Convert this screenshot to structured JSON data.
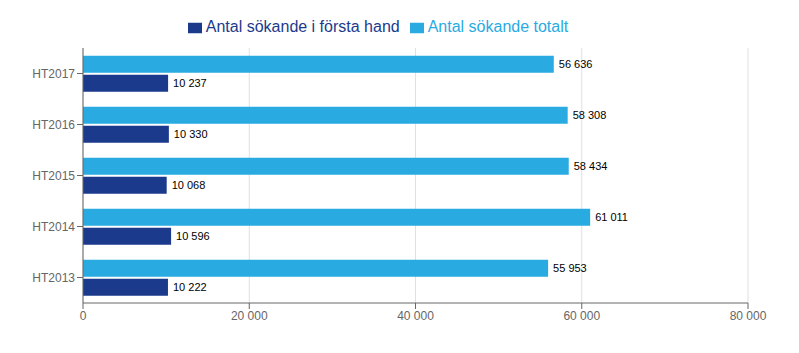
{
  "chart_data": {
    "type": "bar",
    "orientation": "horizontal",
    "categories": [
      "HT2017",
      "HT2016",
      "HT2015",
      "HT2014",
      "HT2013"
    ],
    "series": [
      {
        "name": "Antal sökande totalt",
        "color": "#29ABE2",
        "values": [
          56636,
          58308,
          58434,
          61011,
          55953
        ],
        "value_labels": [
          "56 636",
          "58 308",
          "58 434",
          "61 011",
          "55 953"
        ]
      },
      {
        "name": "Antal sökande i första hand",
        "color": "#1B3A8C",
        "values": [
          10237,
          10330,
          10068,
          10596,
          10222
        ],
        "value_labels": [
          "10 237",
          "10 330",
          "10 068",
          "10 596",
          "10 222"
        ]
      }
    ],
    "xlim": [
      0,
      80000
    ],
    "xticks": [
      0,
      {
        "value": 20000,
        "label": "20 000"
      },
      {
        "value": 40000,
        "label": "40 000"
      },
      {
        "value": 60000,
        "label": "60 000"
      },
      {
        "value": 80000,
        "label": "80 000"
      }
    ],
    "grid": true,
    "data_labels": true,
    "legend": "top"
  }
}
